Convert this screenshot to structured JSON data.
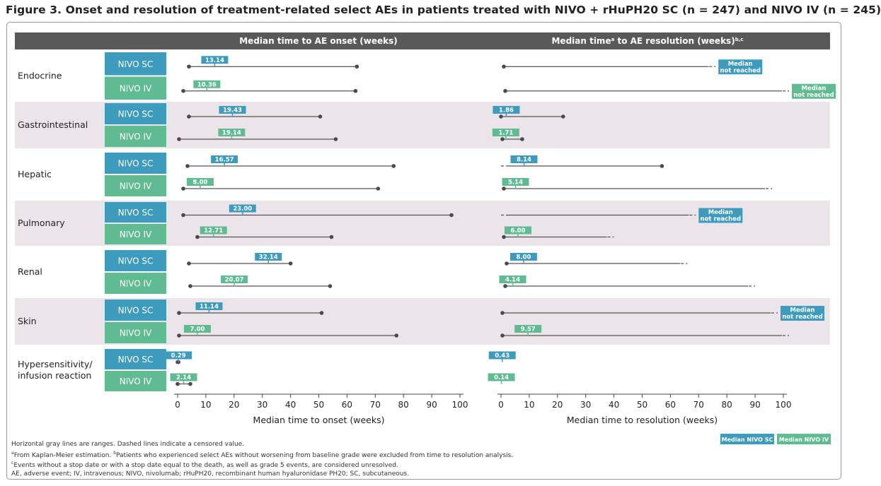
{
  "title": "Figure 3. Onset and resolution of treatment-related select AEs in patients treated with NIVO + rHuPH20 SC (n = 247) and NIVO IV (n = 245)",
  "colors": {
    "sc": "#3d9bbd",
    "iv": "#5fbb91",
    "header": "#595959",
    "band": "#ebe5ea",
    "range": "#555555"
  },
  "chart_data": [
    {
      "type": "range-dot",
      "panel": "onset",
      "title": "Median time to AE onset (weeks)",
      "xlabel": "Median time to onset (weeks)",
      "xlim": [
        0,
        100
      ],
      "xticks": [
        "0",
        "10",
        "20",
        "30",
        "40",
        "50",
        "60",
        "70",
        "80",
        "90",
        "100"
      ],
      "categories": [
        "Endocrine",
        "Gastrointestinal",
        "Hepatic",
        "Pulmonary",
        "Renal",
        "Skin",
        "Hypersensitivity/\ninfusion reaction"
      ],
      "series": [
        {
          "name": "NIVO SC",
          "rows": [
            {
              "median": 13.14,
              "label": "13.14",
              "min": 4,
              "max": 63.5,
              "censored": false,
              "nr": false
            },
            {
              "median": 19.43,
              "label": "19.43",
              "min": 4,
              "max": 50.5,
              "censored": false,
              "nr": false
            },
            {
              "median": 16.57,
              "label": "16.57",
              "min": 3.5,
              "max": 76.5,
              "censored": false,
              "nr": false
            },
            {
              "median": 23.0,
              "label": "23.00",
              "min": 2,
              "max": 97,
              "censored": false,
              "nr": false
            },
            {
              "median": 32.14,
              "label": "32.14",
              "min": 4,
              "max": 40,
              "censored": false,
              "nr": false
            },
            {
              "median": 11.14,
              "label": "11.14",
              "min": 0.5,
              "max": 51,
              "censored": false,
              "nr": false
            },
            {
              "median": 0.29,
              "label": "0.29",
              "min": 0,
              "max": 0.3,
              "censored": false,
              "nr": false
            }
          ]
        },
        {
          "name": "NIVO IV",
          "rows": [
            {
              "median": 10.36,
              "label": "10.36",
              "min": 2,
              "max": 63,
              "censored": false,
              "nr": false
            },
            {
              "median": 19.14,
              "label": "19.14",
              "min": 0.5,
              "max": 56,
              "censored": false,
              "nr": false
            },
            {
              "median": 8.0,
              "label": "8.00",
              "min": 2,
              "max": 71,
              "censored": false,
              "nr": false
            },
            {
              "median": 12.71,
              "label": "12.71",
              "min": 7,
              "max": 54.5,
              "censored": false,
              "nr": false
            },
            {
              "median": 20.07,
              "label": "20.07",
              "min": 4.5,
              "max": 54,
              "censored": false,
              "nr": false
            },
            {
              "median": 7.0,
              "label": "7.00",
              "min": 0.5,
              "max": 77.5,
              "censored": false,
              "nr": false
            },
            {
              "median": 2.14,
              "label": "2.14",
              "min": 0,
              "max": 4.5,
              "censored": false,
              "nr": false
            }
          ]
        }
      ]
    },
    {
      "type": "range-dot",
      "panel": "resolution",
      "title": "Median time",
      "title_sup": "a",
      "title_rest": " to AE resolution (weeks)",
      "title_sup2": "b,c",
      "xlabel": "Median time to resolution (weeks)",
      "xlim": [
        0,
        100
      ],
      "xticks": [
        "0",
        "10",
        "20",
        "30",
        "40",
        "50",
        "60",
        "70",
        "80",
        "90",
        "100"
      ],
      "categories": [
        "Endocrine",
        "Gastrointestinal",
        "Hepatic",
        "Pulmonary",
        "Renal",
        "Skin",
        "Hypersensitivity/\ninfusion reaction"
      ],
      "not_reached_label": [
        "Median",
        "not reached"
      ],
      "series": [
        {
          "name": "NIVO SC",
          "rows": [
            {
              "median": null,
              "label": "",
              "min": 1,
              "max": 76,
              "censored": true,
              "nr": true
            },
            {
              "median": 1.86,
              "label": "1.86",
              "min": 0,
              "max": 22,
              "censored": false,
              "nr": false
            },
            {
              "median": 8.14,
              "label": "8.14",
              "min": 0,
              "max": 57,
              "censored": false,
              "nr": false,
              "censored_min": true
            },
            {
              "median": null,
              "label": "",
              "min": 0,
              "max": 69,
              "censored": true,
              "nr": true,
              "censored_min": true
            },
            {
              "median": 8.0,
              "label": "8.00",
              "min": 2,
              "max": 66,
              "censored": true,
              "nr": false
            },
            {
              "median": null,
              "label": "",
              "min": 0.5,
              "max": 98,
              "censored": true,
              "nr": true
            },
            {
              "median": 0.43,
              "label": "0.43",
              "min": 0.43,
              "max": 0.43,
              "censored": false,
              "nr": false
            }
          ]
        },
        {
          "name": "NIVO IV",
          "rows": [
            {
              "median": null,
              "label": "",
              "min": 1.5,
              "max": 102,
              "censored": true,
              "nr": true
            },
            {
              "median": 1.71,
              "label": "1.71",
              "min": 0.5,
              "max": 7.5,
              "censored": false,
              "nr": false
            },
            {
              "median": 5.14,
              "label": "5.14",
              "min": 1,
              "max": 96,
              "censored": true,
              "nr": false
            },
            {
              "median": 6.0,
              "label": "6.00",
              "min": 1,
              "max": 40,
              "censored": true,
              "nr": false
            },
            {
              "median": 4.14,
              "label": "4.14",
              "min": 1.5,
              "max": 90,
              "censored": true,
              "nr": false
            },
            {
              "median": 9.57,
              "label": "9.57",
              "min": 0.5,
              "max": 102,
              "censored": true,
              "nr": false
            },
            {
              "median": 0.14,
              "label": "0.14",
              "min": 0.14,
              "max": 0.14,
              "censored": false,
              "nr": false
            }
          ]
        }
      ]
    }
  ],
  "legend": {
    "sc": "Median NIVO SC",
    "iv": "Median NIVO IV",
    "position": "bottom-right"
  },
  "footnotes": {
    "f1": "Horizontal gray lines are ranges. Dashed lines indicate a censored value.",
    "f2_sup": "a",
    "f2a": "From Kaplan-Meier estimation. ",
    "f2_sup2": "b",
    "f2b": "Patients who experienced select AEs without worsening from baseline grade were excluded from time to resolution analysis.",
    "f3_sup": "c",
    "f3": "Events without a stop date or with a stop date equal to the death, as well as grade 5 events, are considered unresolved.",
    "f4": "AE, adverse event; IV, intravenous; NIVO, nivolumab; rHuPH20, recombinant human hyaluronidase PH20; SC, subcutaneous."
  }
}
